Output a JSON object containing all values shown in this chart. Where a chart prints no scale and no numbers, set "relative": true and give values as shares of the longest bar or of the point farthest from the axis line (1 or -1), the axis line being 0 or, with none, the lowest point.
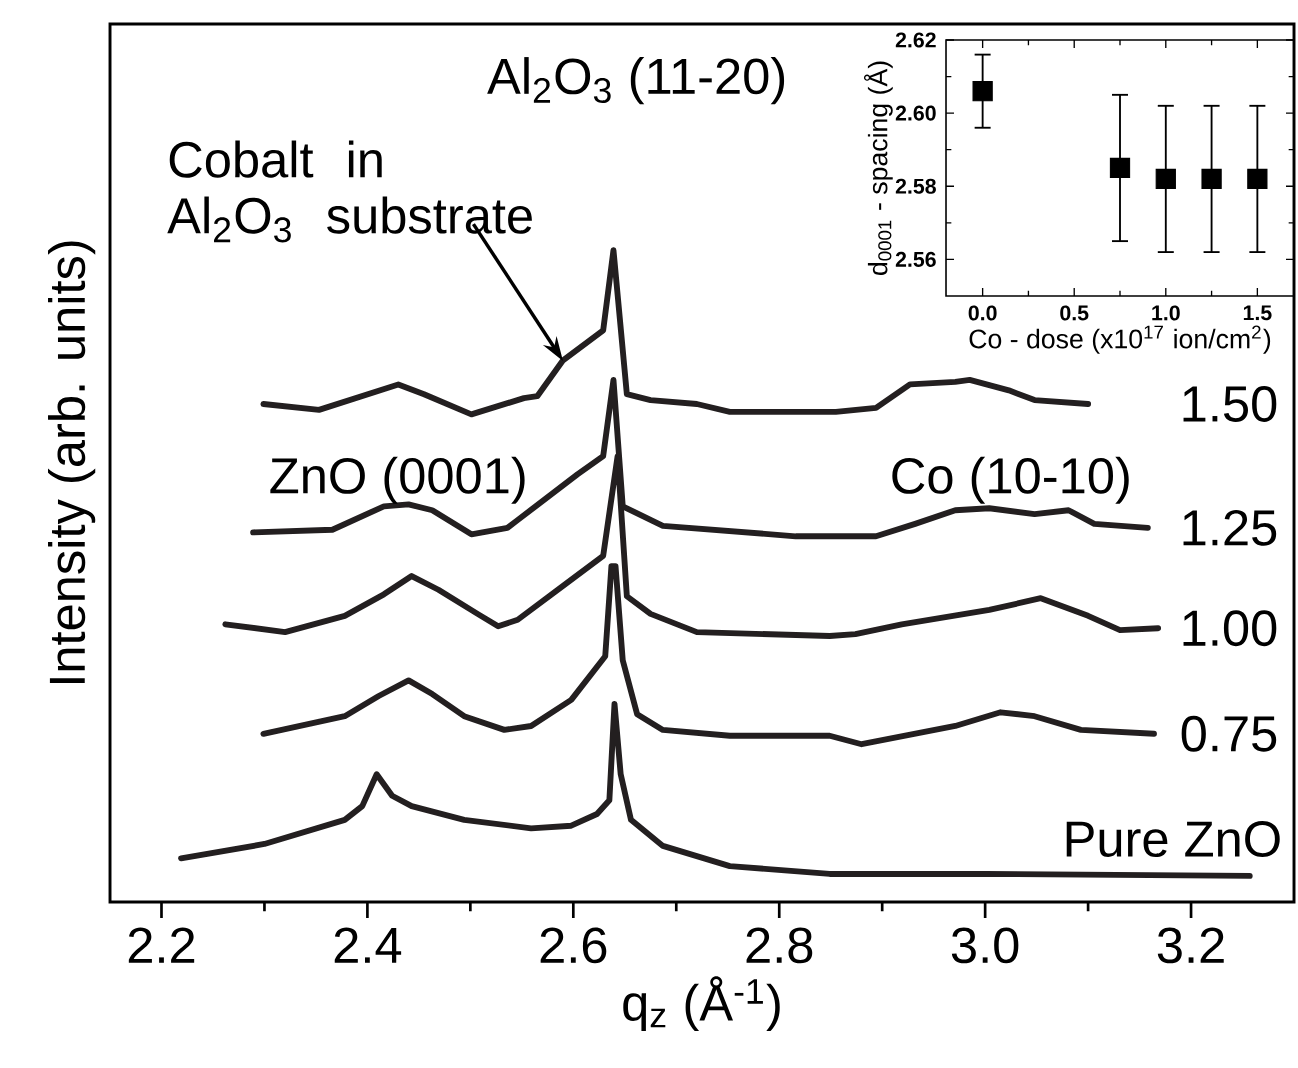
{
  "chart_data": [
    {
      "type": "line",
      "relative": true,
      "xlabel": "q$_{z}$ (Å$^{-1}$)",
      "ylabel": "Intensity (arb. units)",
      "xlim": [
        2.15,
        3.3
      ],
      "xticks": [
        2.2,
        2.4,
        2.6,
        2.8,
        {
          "value": 3.0,
          "label": "3.0"
        },
        3.2
      ],
      "annotations": [
        {
          "text": "Cobalt in Al$_{2}$O$_{3}$ substrate",
          "x": 2.59,
          "y": 0.83
        },
        "Al$_{2}$O$_{3}$ (11-20)",
        "ZnO (0001)",
        "Co (10-10)"
      ],
      "series": [
        {
          "name": "Pure ZnO",
          "color": "#231f20",
          "x": [
            2.219,
            2.3,
            2.378,
            2.395,
            2.409,
            2.424,
            2.443,
            2.494,
            2.559,
            2.598,
            2.623,
            2.635,
            2.64,
            2.646,
            2.656,
            2.687,
            2.752,
            2.849,
            3.0,
            3.257
          ],
          "values": [
            0.067,
            0.089,
            0.126,
            0.147,
            0.196,
            0.163,
            0.147,
            0.126,
            0.113,
            0.117,
            0.135,
            0.156,
            0.304,
            0.196,
            0.126,
            0.086,
            0.055,
            0.043,
            0.043,
            0.04
          ]
        },
        {
          "name": "0.75",
          "color": "#231f20",
          "x": [
            2.299,
            2.378,
            2.411,
            2.44,
            2.463,
            2.494,
            2.533,
            2.559,
            2.598,
            2.631,
            2.637,
            2.641,
            2.648,
            2.662,
            2.687,
            2.752,
            2.849,
            2.88,
            2.971,
            3.015,
            3.048,
            3.093,
            3.164
          ],
          "values": [
            0.258,
            0.285,
            0.316,
            0.34,
            0.319,
            0.285,
            0.264,
            0.27,
            0.31,
            0.377,
            0.515,
            0.515,
            0.371,
            0.288,
            0.264,
            0.255,
            0.255,
            0.242,
            0.27,
            0.291,
            0.285,
            0.264,
            0.258
          ]
        },
        {
          "name": "1.00",
          "color": "#231f20",
          "x": [
            2.262,
            2.32,
            2.378,
            2.416,
            2.443,
            2.469,
            2.507,
            2.527,
            2.546,
            2.59,
            2.629,
            2.643,
            2.652,
            2.675,
            2.72,
            2.849,
            2.874,
            2.919,
            3.004,
            3.054,
            3.1,
            3.131,
            3.168
          ],
          "values": [
            0.426,
            0.414,
            0.439,
            0.472,
            0.5,
            0.479,
            0.442,
            0.423,
            0.433,
            0.485,
            0.531,
            0.684,
            0.469,
            0.442,
            0.414,
            0.408,
            0.411,
            0.426,
            0.448,
            0.466,
            0.439,
            0.417,
            0.42
          ]
        },
        {
          "name": "1.25",
          "color": "#231f20",
          "x": [
            2.289,
            2.366,
            2.416,
            2.44,
            2.463,
            2.501,
            2.536,
            2.546,
            2.604,
            2.629,
            2.639,
            2.648,
            2.687,
            2.816,
            2.894,
            2.932,
            2.971,
            3.004,
            3.048,
            3.081,
            3.106,
            3.158
          ],
          "values": [
            0.567,
            0.571,
            0.607,
            0.61,
            0.601,
            0.564,
            0.574,
            0.586,
            0.656,
            0.684,
            0.801,
            0.607,
            0.577,
            0.561,
            0.561,
            0.58,
            0.601,
            0.604,
            0.595,
            0.601,
            0.58,
            0.574
          ]
        },
        {
          "name": "1.50",
          "color": "#231f20",
          "x": [
            2.299,
            2.353,
            2.43,
            2.455,
            2.501,
            2.552,
            2.565,
            2.59,
            2.629,
            2.639,
            2.652,
            2.675,
            2.72,
            2.752,
            2.855,
            2.894,
            2.927,
            2.971,
            2.985,
            3.023,
            3.048,
            3.1
          ],
          "values": [
            0.764,
            0.755,
            0.794,
            0.779,
            0.748,
            0.773,
            0.776,
            0.831,
            0.877,
            1.0,
            0.779,
            0.77,
            0.764,
            0.752,
            0.752,
            0.758,
            0.794,
            0.798,
            0.801,
            0.785,
            0.77,
            0.764
          ]
        }
      ]
    },
    {
      "type": "scatter",
      "marker": "square",
      "xlabel": "Co - dose (x10$^{17}$ ion/cm$^{2}$)",
      "ylabel": "d$_{0001}$ - spacing (Å)",
      "xlim": [
        -0.2,
        1.7
      ],
      "ylim": [
        2.55,
        2.62
      ],
      "xticks": [
        {
          "value": 0,
          "label": "0.0"
        },
        0.5,
        {
          "value": 1.0,
          "label": "1.0"
        },
        1.5
      ],
      "yticks": [
        2.56,
        2.58,
        {
          "value": 2.6,
          "label": "2.60"
        },
        2.62
      ],
      "series": [
        {
          "color": "#000000",
          "x": [
            0,
            0.75,
            1.0,
            1.25,
            1.5
          ],
          "values": [
            2.606,
            2.585,
            2.582,
            2.582,
            2.582
          ],
          "errors": [
            0.01,
            0.02,
            0.02,
            0.02,
            0.02
          ]
        }
      ]
    }
  ]
}
